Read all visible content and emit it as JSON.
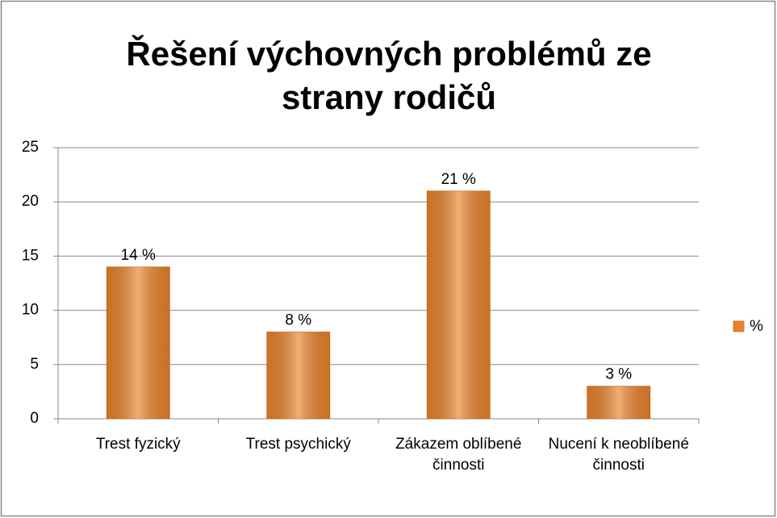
{
  "chart_data": {
    "type": "bar",
    "title": "Řešení výchovných problémů ze strany rodičů",
    "categories": [
      "Trest fyzický",
      "Trest psychický",
      "Zákazem oblíbené činnosti",
      "Nucení k neoblíbené činnosti"
    ],
    "series": [
      {
        "name": "%",
        "color": "#e8822a",
        "values": [
          14,
          8,
          21,
          3
        ],
        "value_labels": [
          "14 %",
          "8 %",
          "21 %",
          "3 %"
        ]
      }
    ],
    "ylim": [
      0,
      25
    ],
    "yticks": [
      0,
      5,
      10,
      15,
      20,
      25
    ],
    "grid": true,
    "legend": "right"
  }
}
